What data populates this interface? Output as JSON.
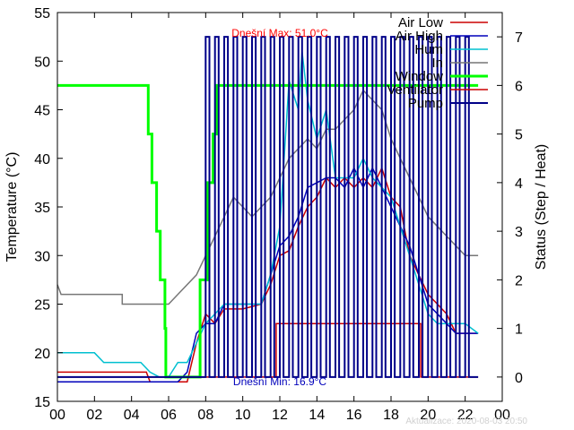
{
  "chart_data": {
    "type": "line",
    "x_ticks": [
      "00",
      "02",
      "04",
      "06",
      "08",
      "10",
      "12",
      "14",
      "16",
      "18",
      "20",
      "22",
      "00"
    ],
    "xlim": [
      0,
      24
    ],
    "y_left": {
      "label": "Temperature (°C)",
      "range": [
        15,
        55
      ],
      "ticks": [
        "15",
        "20",
        "25",
        "30",
        "35",
        "40",
        "45",
        "50",
        "55"
      ]
    },
    "y_right": {
      "label": "Status (Step / Heat)",
      "range": [
        -0.5,
        7.5
      ],
      "ticks": [
        "0",
        "1",
        "2",
        "3",
        "4",
        "5",
        "6",
        "7"
      ]
    },
    "grid": false,
    "legend_position": "top-right",
    "annotations": {
      "max": {
        "text": "Dnešní Max: 51.0°C",
        "color": "#ff0000"
      },
      "min": {
        "text": "Dnešní Min: 16.9°C",
        "color": "#0000bb"
      },
      "updated": {
        "text": "Aktualizace: 2020-08-03 20:50"
      }
    },
    "series": [
      {
        "name": "Air Low",
        "axis": "left",
        "color": "#cc0000",
        "width": 1.5,
        "points": [
          [
            0,
            18
          ],
          [
            4.8,
            18
          ],
          [
            5.0,
            17
          ],
          [
            7.0,
            17
          ],
          [
            7.5,
            21
          ],
          [
            8.0,
            24
          ],
          [
            8.5,
            23
          ],
          [
            9.0,
            24.5
          ],
          [
            10,
            24.5
          ],
          [
            11,
            25
          ],
          [
            11.5,
            27
          ],
          [
            12,
            30
          ],
          [
            12.5,
            30.5
          ],
          [
            13,
            33
          ],
          [
            13.5,
            35
          ],
          [
            14,
            36
          ],
          [
            14.5,
            38
          ],
          [
            15,
            37
          ],
          [
            15.5,
            38
          ],
          [
            16,
            37
          ],
          [
            16.5,
            38
          ],
          [
            17,
            37
          ],
          [
            17.5,
            39
          ],
          [
            18,
            36
          ],
          [
            18.5,
            35
          ],
          [
            19,
            30
          ],
          [
            19.5,
            28
          ],
          [
            20,
            26
          ],
          [
            20.5,
            25
          ],
          [
            21,
            24
          ],
          [
            21.5,
            22
          ],
          [
            22,
            22
          ],
          [
            22.7,
            22
          ]
        ]
      },
      {
        "name": "Air High",
        "axis": "left",
        "color": "#0000bb",
        "width": 1.5,
        "points": [
          [
            0,
            17
          ],
          [
            6.5,
            17
          ],
          [
            7.0,
            18
          ],
          [
            7.5,
            22
          ],
          [
            8.0,
            23
          ],
          [
            8.5,
            23
          ],
          [
            9.0,
            25
          ],
          [
            10,
            25
          ],
          [
            11,
            25
          ],
          [
            11.5,
            28
          ],
          [
            12,
            31
          ],
          [
            12.5,
            32
          ],
          [
            13,
            34
          ],
          [
            13.5,
            37
          ],
          [
            14,
            37.5
          ],
          [
            14.5,
            38
          ],
          [
            15,
            38
          ],
          [
            15.5,
            37
          ],
          [
            16,
            39
          ],
          [
            16.5,
            37
          ],
          [
            17,
            39
          ],
          [
            17.5,
            37
          ],
          [
            18,
            35
          ],
          [
            18.5,
            33
          ],
          [
            19,
            31
          ],
          [
            19.5,
            28
          ],
          [
            20,
            25
          ],
          [
            20.5,
            24
          ],
          [
            21,
            23
          ],
          [
            21.5,
            22
          ],
          [
            22,
            22
          ],
          [
            22.7,
            22
          ]
        ]
      },
      {
        "name": "Hum",
        "axis": "left",
        "color": "#00c0d0",
        "width": 1.5,
        "points": [
          [
            0,
            20
          ],
          [
            2,
            20
          ],
          [
            2.5,
            19
          ],
          [
            4.5,
            19
          ],
          [
            5.0,
            18
          ],
          [
            5.5,
            17.5
          ],
          [
            6,
            17.5
          ],
          [
            6.5,
            19
          ],
          [
            7,
            19
          ],
          [
            7.5,
            21
          ],
          [
            8,
            23
          ],
          [
            8.5,
            24
          ],
          [
            9,
            25
          ],
          [
            10,
            25
          ],
          [
            11,
            25
          ],
          [
            11.5,
            28
          ],
          [
            12,
            33
          ],
          [
            12.5,
            48
          ],
          [
            13,
            45
          ],
          [
            13.2,
            51
          ],
          [
            13.5,
            46
          ],
          [
            14,
            42
          ],
          [
            14.5,
            45
          ],
          [
            15,
            38
          ],
          [
            15.5,
            38
          ],
          [
            16,
            38
          ],
          [
            16.5,
            40
          ],
          [
            17,
            38
          ],
          [
            17.5,
            37
          ],
          [
            18,
            36
          ],
          [
            18.5,
            33
          ],
          [
            19,
            30
          ],
          [
            19.5,
            27
          ],
          [
            20,
            24
          ],
          [
            20.5,
            23
          ],
          [
            21,
            23
          ],
          [
            21.5,
            23
          ],
          [
            22,
            23
          ],
          [
            22.7,
            22
          ]
        ]
      },
      {
        "name": "In",
        "axis": "left",
        "color": "#777777",
        "width": 1.5,
        "points": [
          [
            0,
            27
          ],
          [
            0.2,
            26
          ],
          [
            3.5,
            26
          ],
          [
            3.5,
            25
          ],
          [
            6,
            25
          ],
          [
            6.5,
            26
          ],
          [
            7.5,
            28
          ],
          [
            8,
            30
          ],
          [
            8.5,
            32
          ],
          [
            9,
            34
          ],
          [
            9.5,
            36
          ],
          [
            10,
            35
          ],
          [
            10.5,
            34
          ],
          [
            11,
            35
          ],
          [
            11.5,
            36
          ],
          [
            12,
            38
          ],
          [
            12.5,
            40
          ],
          [
            13,
            41
          ],
          [
            13.5,
            42
          ],
          [
            14,
            41
          ],
          [
            14.5,
            43
          ],
          [
            15,
            43
          ],
          [
            15.5,
            44
          ],
          [
            16,
            45
          ],
          [
            16.5,
            47
          ],
          [
            17,
            46
          ],
          [
            17.5,
            45
          ],
          [
            18,
            42
          ],
          [
            18.5,
            40
          ],
          [
            19,
            38
          ],
          [
            19.5,
            36
          ],
          [
            20,
            34
          ],
          [
            20.5,
            33
          ],
          [
            21,
            32
          ],
          [
            21.5,
            31
          ],
          [
            22,
            30
          ],
          [
            22.7,
            30
          ]
        ]
      },
      {
        "name": "Window",
        "axis": "right",
        "color": "#00ff00",
        "width": 3,
        "points": [
          [
            0,
            6
          ],
          [
            4.9,
            6
          ],
          [
            4.9,
            5
          ],
          [
            5.1,
            5
          ],
          [
            5.1,
            4
          ],
          [
            5.35,
            4
          ],
          [
            5.35,
            3
          ],
          [
            5.55,
            3
          ],
          [
            5.55,
            2
          ],
          [
            5.8,
            2
          ],
          [
            5.8,
            1
          ],
          [
            5.85,
            1
          ],
          [
            5.85,
            0
          ],
          [
            7.7,
            0
          ],
          [
            7.7,
            2
          ],
          [
            8.1,
            2
          ],
          [
            8.1,
            4
          ],
          [
            8.4,
            4
          ],
          [
            8.4,
            5
          ],
          [
            8.6,
            5
          ],
          [
            8.6,
            6
          ],
          [
            22.7,
            6
          ]
        ]
      },
      {
        "name": "Ventilator",
        "axis": "right",
        "color": "#cc0000",
        "width": 1.5,
        "points": [
          [
            0,
            0
          ],
          [
            11.8,
            0
          ],
          [
            11.8,
            1.1
          ],
          [
            19.6,
            1.1
          ],
          [
            19.6,
            0
          ],
          [
            22.7,
            0
          ]
        ]
      },
      {
        "name": "Pump",
        "axis": "right",
        "color": "#000088",
        "width": 2,
        "points": [
          [
            0,
            0
          ],
          [
            8,
            0
          ],
          [
            8,
            7
          ],
          [
            8.2,
            7
          ],
          [
            8.2,
            0
          ],
          [
            8.5,
            0
          ],
          [
            8.5,
            7
          ],
          [
            8.7,
            7
          ],
          [
            8.7,
            0
          ],
          [
            9.0,
            0
          ],
          [
            9.0,
            7
          ],
          [
            9.2,
            7
          ],
          [
            9.2,
            0
          ],
          [
            9.5,
            0
          ],
          [
            9.5,
            7
          ],
          [
            9.7,
            7
          ],
          [
            9.7,
            0
          ],
          [
            10.0,
            0
          ],
          [
            10.0,
            7
          ],
          [
            10.2,
            7
          ],
          [
            10.2,
            0
          ],
          [
            10.5,
            0
          ],
          [
            10.5,
            7
          ],
          [
            10.7,
            7
          ],
          [
            10.7,
            0
          ],
          [
            11.0,
            0
          ],
          [
            11.0,
            7
          ],
          [
            11.2,
            7
          ],
          [
            11.2,
            0
          ],
          [
            11.5,
            0
          ],
          [
            11.5,
            7
          ],
          [
            11.7,
            7
          ],
          [
            11.7,
            0
          ],
          [
            12.0,
            0
          ],
          [
            12.0,
            7
          ],
          [
            12.2,
            7
          ],
          [
            12.2,
            0
          ],
          [
            12.5,
            0
          ],
          [
            12.5,
            7
          ],
          [
            12.7,
            7
          ],
          [
            12.7,
            0
          ],
          [
            13.0,
            0
          ],
          [
            13.0,
            7
          ],
          [
            13.2,
            7
          ],
          [
            13.2,
            0
          ],
          [
            13.5,
            0
          ],
          [
            13.5,
            7
          ],
          [
            13.7,
            7
          ],
          [
            13.7,
            0
          ],
          [
            14.0,
            0
          ],
          [
            14.0,
            7
          ],
          [
            14.2,
            7
          ],
          [
            14.2,
            0
          ],
          [
            14.5,
            0
          ],
          [
            14.5,
            7
          ],
          [
            14.7,
            7
          ],
          [
            14.7,
            0
          ],
          [
            15.0,
            0
          ],
          [
            15.0,
            7
          ],
          [
            15.2,
            7
          ],
          [
            15.2,
            0
          ],
          [
            15.5,
            0
          ],
          [
            15.5,
            7
          ],
          [
            15.7,
            7
          ],
          [
            15.7,
            0
          ],
          [
            16.0,
            0
          ],
          [
            16.0,
            7
          ],
          [
            16.2,
            7
          ],
          [
            16.2,
            0
          ],
          [
            16.5,
            0
          ],
          [
            16.5,
            7
          ],
          [
            16.7,
            7
          ],
          [
            16.7,
            0
          ],
          [
            17.0,
            0
          ],
          [
            17.0,
            7
          ],
          [
            17.2,
            7
          ],
          [
            17.2,
            0
          ],
          [
            17.5,
            0
          ],
          [
            17.5,
            7
          ],
          [
            17.7,
            7
          ],
          [
            17.7,
            0
          ],
          [
            18.0,
            0
          ],
          [
            18.0,
            7
          ],
          [
            18.2,
            7
          ],
          [
            18.2,
            0
          ],
          [
            18.5,
            0
          ],
          [
            18.5,
            7
          ],
          [
            18.7,
            7
          ],
          [
            18.7,
            0
          ],
          [
            19.0,
            0
          ],
          [
            19.0,
            7
          ],
          [
            19.2,
            7
          ],
          [
            19.2,
            0
          ],
          [
            19.5,
            0
          ],
          [
            19.5,
            7
          ],
          [
            19.7,
            7
          ],
          [
            19.7,
            0
          ],
          [
            20.0,
            0
          ],
          [
            20.0,
            7
          ],
          [
            20.2,
            7
          ],
          [
            20.2,
            0
          ],
          [
            20.5,
            0
          ],
          [
            20.5,
            7
          ],
          [
            20.7,
            7
          ],
          [
            20.7,
            0
          ],
          [
            21.0,
            0
          ],
          [
            21.0,
            7
          ],
          [
            21.2,
            7
          ],
          [
            21.2,
            0
          ],
          [
            21.5,
            0
          ],
          [
            21.5,
            7
          ],
          [
            21.7,
            7
          ],
          [
            21.7,
            0
          ],
          [
            22.0,
            0
          ],
          [
            22.0,
            7
          ],
          [
            22.2,
            7
          ],
          [
            22.2,
            0
          ],
          [
            22.7,
            0
          ]
        ]
      }
    ]
  }
}
